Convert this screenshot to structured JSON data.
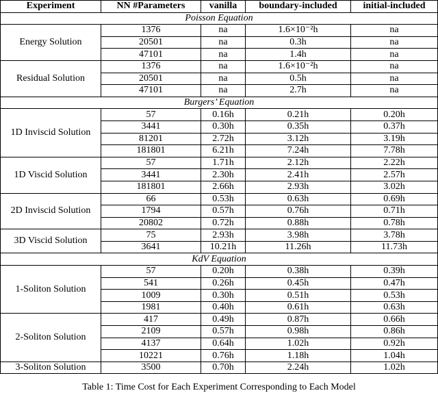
{
  "table": {
    "header": [
      "Experiment",
      "NN #Parameters",
      "vanilla",
      "boundary-included",
      "initial-included"
    ],
    "sections": [
      {
        "title": "Poisson Equation",
        "groups": [
          {
            "name": "Energy Solution",
            "rows": [
              [
                "1376",
                "na",
                "1.6×10⁻²h",
                "na"
              ],
              [
                "20501",
                "na",
                "0.3h",
                "na"
              ],
              [
                "47101",
                "na",
                "1.4h",
                "na"
              ]
            ]
          },
          {
            "name": "Residual Solution",
            "rows": [
              [
                "1376",
                "na",
                "1.6×10⁻²h",
                "na"
              ],
              [
                "20501",
                "na",
                "0.5h",
                "na"
              ],
              [
                "47101",
                "na",
                "2.7h",
                "na"
              ]
            ]
          }
        ]
      },
      {
        "title": "Burgers’ Equation",
        "groups": [
          {
            "name": "1D Inviscid Solution",
            "rows": [
              [
                "57",
                "0.16h",
                "0.21h",
                "0.20h"
              ],
              [
                "3441",
                "0.30h",
                "0.35h",
                "0.37h"
              ],
              [
                "81201",
                "2.72h",
                "3.12h",
                "3.19h"
              ],
              [
                "181801",
                "6.21h",
                "7.24h",
                "7.78h"
              ]
            ]
          },
          {
            "name": "1D Viscid Solution",
            "rows": [
              [
                "57",
                "1.71h",
                "2.12h",
                "2.22h"
              ],
              [
                "3441",
                "2.30h",
                "2.41h",
                "2.57h"
              ],
              [
                "181801",
                "2.66h",
                "2.93h",
                "3.02h"
              ]
            ]
          },
          {
            "name": "2D Inviscid Solution",
            "rows": [
              [
                "66",
                "0.53h",
                "0.63h",
                "0.69h"
              ],
              [
                "1794",
                "0.57h",
                "0.76h",
                "0.71h"
              ],
              [
                "20802",
                "0.72h",
                "0.88h",
                "0.78h"
              ]
            ]
          },
          {
            "name": "3D Viscid Solution",
            "rows": [
              [
                "75",
                "2.93h",
                "3.98h",
                "3.78h"
              ],
              [
                "3641",
                "10.21h",
                "11.26h",
                "11.73h"
              ]
            ]
          }
        ]
      },
      {
        "title": "KdV Equation",
        "groups": [
          {
            "name": "1-Soliton Solution",
            "rows": [
              [
                "57",
                "0.20h",
                "0.38h",
                "0.39h"
              ],
              [
                "541",
                "0.26h",
                "0.45h",
                "0.47h"
              ],
              [
                "1009",
                "0.30h",
                "0.51h",
                "0.53h"
              ],
              [
                "1981",
                "0.40h",
                "0.61h",
                "0.63h"
              ]
            ]
          },
          {
            "name": "2-Soliton Solution",
            "rows": [
              [
                "417",
                "0.49h",
                "0.87h",
                "0.66h"
              ],
              [
                "2109",
                "0.57h",
                "0.98h",
                "0.86h"
              ],
              [
                "4137",
                "0.64h",
                "1.02h",
                "0.92h"
              ],
              [
                "10221",
                "0.76h",
                "1.18h",
                "1.04h"
              ]
            ]
          },
          {
            "name": "3-Soliton Solution",
            "rows": [
              [
                "3500",
                "0.70h",
                "2.24h",
                "1.02h"
              ]
            ]
          }
        ]
      }
    ]
  },
  "caption": "Table 1: Time Cost for Each Experiment Corresponding to Each Model"
}
